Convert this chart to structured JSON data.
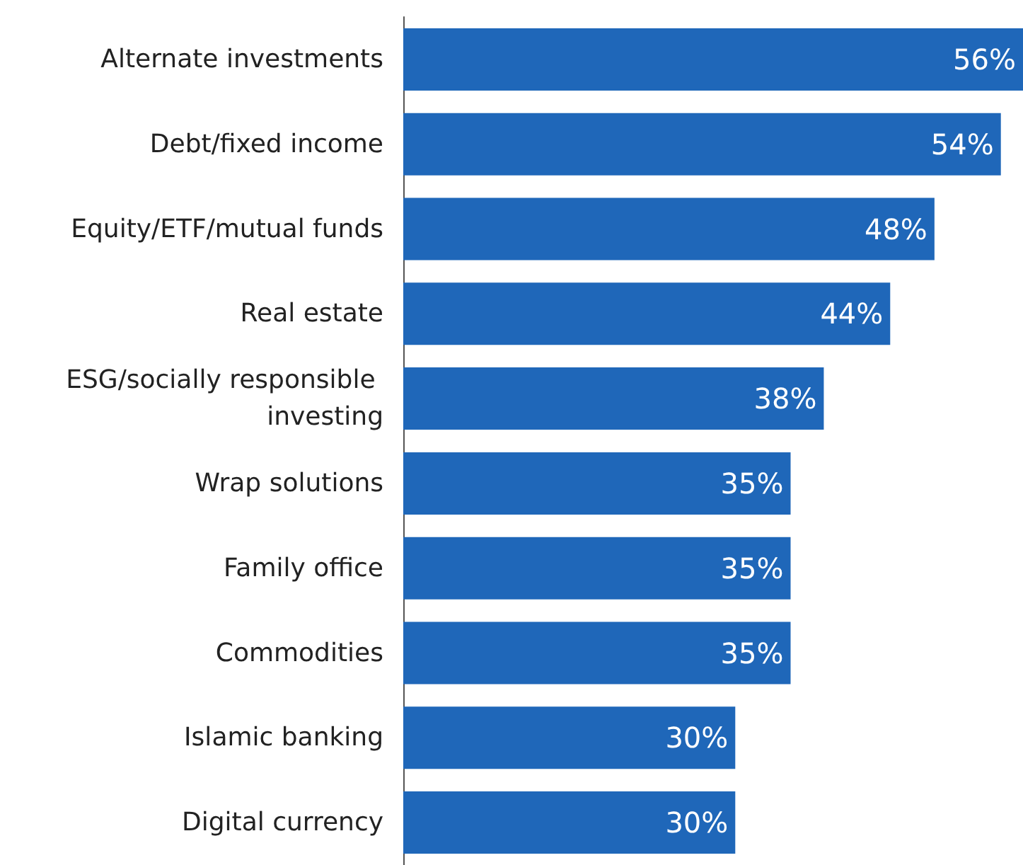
{
  "chart_data": {
    "type": "bar",
    "orientation": "horizontal",
    "categories": [
      "Alternate investments",
      "Debt/fixed income",
      "Equity/ETF/mutual funds",
      "Real estate",
      "ESG/socially responsible investing",
      "Wrap solutions",
      "Family office",
      "Commodities",
      "Islamic banking",
      "Digital currency"
    ],
    "values": [
      56,
      54,
      48,
      44,
      38,
      35,
      35,
      35,
      30,
      30
    ],
    "value_labels": [
      "56%",
      "54%",
      "48%",
      "44%",
      "38%",
      "35%",
      "35%",
      "35%",
      "30%",
      "30%"
    ],
    "color": "#1f67b9",
    "xlim": [
      0,
      56
    ],
    "tick_labels": "y"
  }
}
